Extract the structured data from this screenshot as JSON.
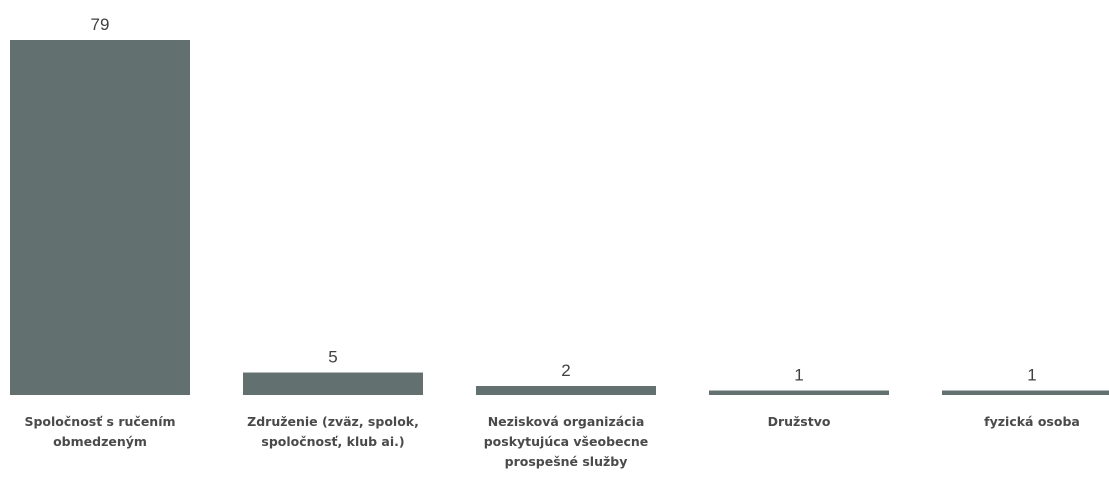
{
  "chart_data": {
    "type": "bar",
    "categories": [
      "Spoločnosť s ručením obmedzeným",
      "Združenie (zväz, spolok, spoločnosť, klub ai.)",
      "Nezisková organizácia poskytujúca všeobecne prospešné služby",
      "Družstvo",
      "fyzická osoba"
    ],
    "values": [
      79,
      5,
      2,
      1,
      1
    ],
    "title": "",
    "xlabel": "",
    "ylabel": "",
    "ylim": [
      0,
      79
    ],
    "grid": false,
    "legend": "none",
    "bar_color": "#637070"
  }
}
